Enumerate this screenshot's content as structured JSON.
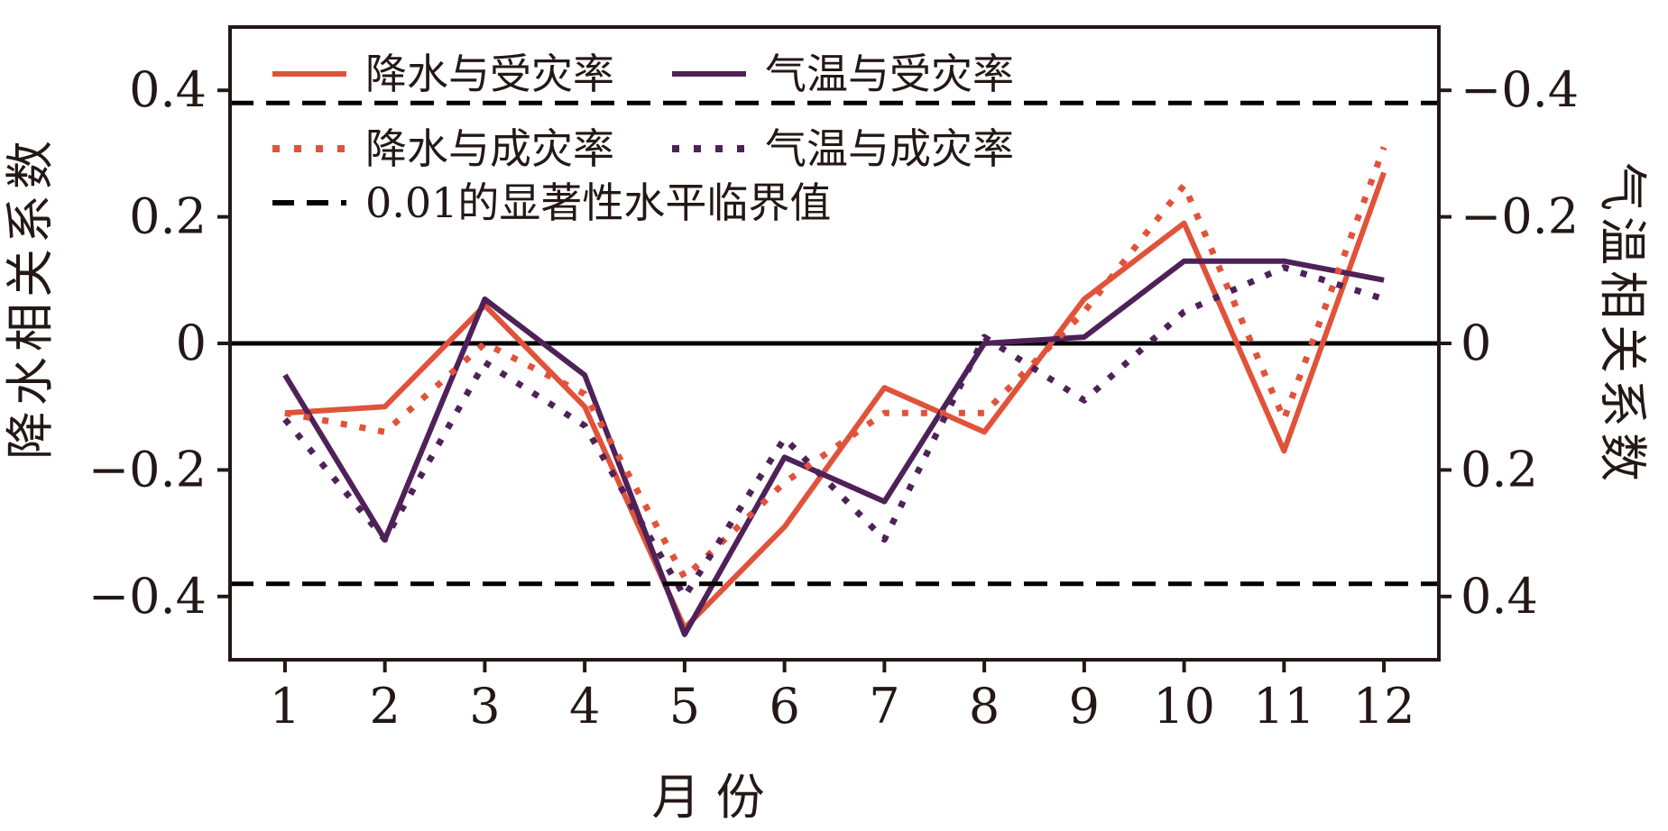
{
  "chart_data": {
    "type": "line",
    "x": [
      1,
      2,
      3,
      4,
      5,
      6,
      7,
      8,
      9,
      10,
      11,
      12
    ],
    "xlabel": "月 份",
    "ylabel_left": "降水相关系数",
    "ylabel_right": "气温相关系数",
    "ylim_left": [
      -0.5,
      0.5
    ],
    "ylim_right": [
      0.5,
      -0.5
    ],
    "yticks_left": [
      "0.4",
      "0.2",
      "0",
      "−0.2",
      "−0.4"
    ],
    "yticks_left_values": [
      0.4,
      0.2,
      0,
      -0.2,
      -0.4
    ],
    "yticks_right": [
      "−0.4",
      "−0.2",
      "0",
      "0.2",
      "0.4"
    ],
    "yticks_right_values": [
      -0.4,
      -0.2,
      0,
      0.2,
      0.4
    ],
    "xticks": [
      "1",
      "2",
      "3",
      "4",
      "5",
      "6",
      "7",
      "8",
      "9",
      "10",
      "11",
      "12"
    ],
    "series": [
      {
        "name": "降水与受灾率",
        "axis": "left",
        "style": "solid",
        "color": "#e0533a",
        "values": [
          -0.11,
          -0.1,
          0.06,
          -0.1,
          -0.45,
          -0.29,
          -0.07,
          -0.14,
          0.07,
          0.19,
          -0.17,
          0.27
        ]
      },
      {
        "name": "气温与受灾率",
        "axis": "right",
        "style": "solid",
        "color": "#4f2159",
        "values": [
          0.05,
          0.31,
          -0.07,
          0.05,
          0.46,
          0.18,
          0.25,
          0.0,
          -0.01,
          -0.13,
          -0.13,
          -0.1
        ]
      },
      {
        "name": "降水与成灾率",
        "axis": "left",
        "style": "dotted",
        "color": "#e0533a",
        "values": [
          -0.11,
          -0.14,
          0.0,
          -0.08,
          -0.37,
          -0.22,
          -0.11,
          -0.11,
          0.05,
          0.25,
          -0.12,
          0.31
        ]
      },
      {
        "name": "气温与成灾率",
        "axis": "right",
        "style": "dotted",
        "color": "#4f2159",
        "values": [
          0.12,
          0.31,
          0.03,
          0.13,
          0.4,
          0.15,
          0.31,
          -0.01,
          0.09,
          -0.05,
          -0.12,
          -0.07
        ]
      },
      {
        "name": "0.01的显著性水平临界值",
        "axis": "left",
        "style": "dashed",
        "color": "#000000",
        "values_const": [
          0.38,
          -0.38
        ]
      }
    ],
    "zero_line": 0,
    "grid": false,
    "legend_position": "top-left",
    "colors": {
      "precip": "#e0533a",
      "temp": "#4f2159",
      "critical": "#000000"
    }
  }
}
